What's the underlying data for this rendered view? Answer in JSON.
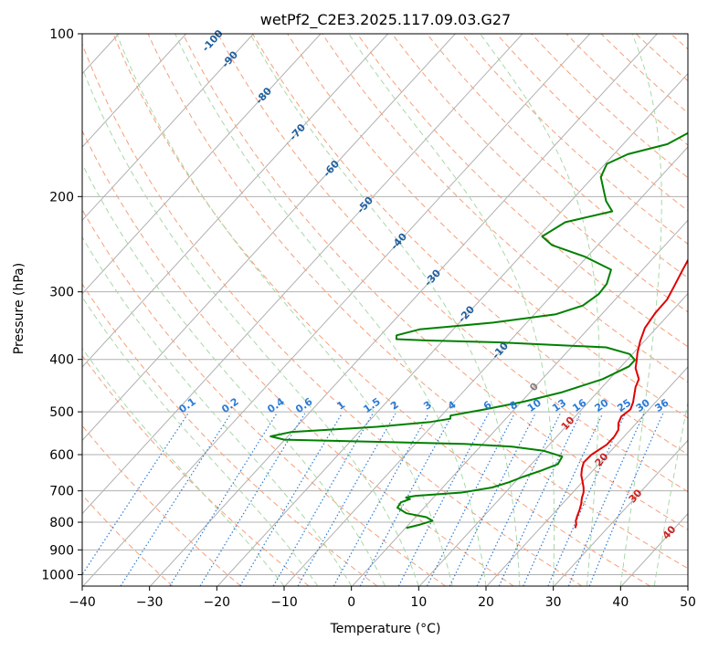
{
  "chart_data": {
    "type": "line",
    "title": "wetPf2_C2E3.2025.117.09.03.G27",
    "xlabel": "Temperature (°C)",
    "ylabel": "Pressure (hPa)",
    "xlim": [
      -40,
      50
    ],
    "ylim": [
      1050,
      100
    ],
    "yscale": "log",
    "grid": true,
    "x_ticks": [
      "−40",
      "−30",
      "−20",
      "−10",
      "0",
      "10",
      "20",
      "30",
      "40",
      "50"
    ],
    "x_tick_values": [
      -40,
      -30,
      -20,
      -10,
      0,
      10,
      20,
      30,
      40,
      50
    ],
    "y_ticks": [
      "1000",
      "900",
      "800",
      "700",
      "600",
      "500",
      "400",
      "300",
      "200",
      "100"
    ],
    "y_tick_values": [
      1000,
      900,
      800,
      700,
      600,
      500,
      400,
      300,
      200,
      100
    ],
    "series": [
      {
        "name": "",
        "color": "#e00000",
        "points": [
          [
            25.3,
            820
          ],
          [
            25.0,
            808
          ],
          [
            24.4,
            795
          ],
          [
            24.0,
            780
          ],
          [
            23.5,
            760
          ],
          [
            22.9,
            740
          ],
          [
            22.2,
            722
          ],
          [
            21.7,
            705
          ],
          [
            21.0,
            690
          ],
          [
            20.0,
            672
          ],
          [
            19.0,
            655
          ],
          [
            18.2,
            637
          ],
          [
            17.6,
            620
          ],
          [
            17.7,
            600
          ],
          [
            18.6,
            575
          ],
          [
            18.6,
            555
          ],
          [
            18.3,
            540
          ],
          [
            17.4,
            525
          ],
          [
            16.9,
            510
          ],
          [
            17.3,
            495
          ],
          [
            16.7,
            480
          ],
          [
            15.0,
            450
          ],
          [
            14.4,
            435
          ],
          [
            12.4,
            415
          ],
          [
            11.6,
            403
          ],
          [
            10.6,
            389
          ],
          [
            9.4,
            370
          ],
          [
            8.3,
            350
          ],
          [
            7.8,
            328
          ],
          [
            7.7,
            310
          ],
          [
            6.9,
            292
          ],
          [
            6.0,
            274
          ],
          [
            4.9,
            252
          ],
          [
            3.8,
            233
          ],
          [
            2.3,
            212
          ],
          [
            0.3,
            193
          ],
          [
            -2.8,
            172
          ],
          [
            -5.0,
            152
          ],
          [
            -7.4,
            136
          ],
          [
            -7.6,
            122
          ],
          [
            -6.8,
            117
          ],
          [
            -3.6,
            110
          ],
          [
            -0.8,
            104
          ],
          [
            0.2,
            100
          ]
        ]
      },
      {
        "name": "",
        "color": "#008000",
        "points": [
          [
            0.2,
            820
          ],
          [
            1.8,
            808
          ],
          [
            3.1,
            795
          ],
          [
            1.7,
            783
          ],
          [
            -1.8,
            770
          ],
          [
            -3.9,
            752
          ],
          [
            -4.1,
            735
          ],
          [
            -3.2,
            725
          ],
          [
            -4.0,
            720
          ],
          [
            -2.8,
            715
          ],
          [
            3.6,
            705
          ],
          [
            7.4,
            690
          ],
          [
            9.2,
            675
          ],
          [
            10.5,
            660
          ],
          [
            12.4,
            642
          ],
          [
            14.0,
            625
          ],
          [
            13.6,
            605
          ],
          [
            10.0,
            590
          ],
          [
            4.8,
            580
          ],
          [
            -2.8,
            573
          ],
          [
            -16.4,
            568
          ],
          [
            -30.0,
            563
          ],
          [
            -32.5,
            555
          ],
          [
            -30.1,
            545
          ],
          [
            -18.0,
            533
          ],
          [
            -10.7,
            522
          ],
          [
            -8.2,
            515
          ],
          [
            -8.6,
            508
          ],
          [
            -4.4,
            495
          ],
          [
            0.3,
            479
          ],
          [
            4.8,
            460
          ],
          [
            9.0,
            435
          ],
          [
            11.2,
            412
          ],
          [
            11.2,
            401
          ],
          [
            9.6,
            391
          ],
          [
            5.2,
            380
          ],
          [
            -11.5,
            372
          ],
          [
            -22.6,
            369
          ],
          [
            -27.1,
            367
          ],
          [
            -27.6,
            361
          ],
          [
            -25.0,
            352
          ],
          [
            -15.0,
            342
          ],
          [
            -6.8,
            330
          ],
          [
            -4.0,
            318
          ],
          [
            -3.2,
            303
          ],
          [
            -3.4,
            290
          ],
          [
            -4.7,
            273
          ],
          [
            -10.5,
            258
          ],
          [
            -16.8,
            246
          ],
          [
            -19.5,
            237
          ],
          [
            -18.0,
            223
          ],
          [
            -12.5,
            213
          ],
          [
            -14.8,
            204
          ],
          [
            -16.6,
            195
          ],
          [
            -18.9,
            184
          ],
          [
            -19.8,
            174
          ],
          [
            -18.0,
            167
          ],
          [
            -13.5,
            160
          ],
          [
            -11.4,
            150
          ],
          [
            -10.3,
            137
          ],
          [
            -10.0,
            125
          ],
          [
            -8.9,
            115
          ],
          [
            -8.5,
            100
          ]
        ]
      }
    ],
    "isotherm_labels": [
      "-100",
      "-90",
      "-80",
      "-70",
      "-60",
      "-50",
      "-40",
      "-30",
      "-20",
      "-10",
      "0",
      "10",
      "20",
      "30",
      "40"
    ],
    "mixing_ratio_labels": [
      "0.1",
      "0.2",
      "0.4",
      "0.6",
      "1",
      "1.5",
      "2",
      "3",
      "4",
      "6",
      "8",
      "10",
      "13",
      "16",
      "20",
      "25",
      "30",
      "36"
    ],
    "colors": {
      "temperature": "#e00000",
      "dewpoint": "#008000",
      "dry_adiabat": "#f4a07a",
      "moist_adiabat": "#a8d8a8",
      "mixing_ratio": "#2b7bd6",
      "isotherm_label_cold": "#1f5fa0",
      "isotherm_label_warm": "#d02020",
      "grid": "#b0b0b0"
    }
  }
}
